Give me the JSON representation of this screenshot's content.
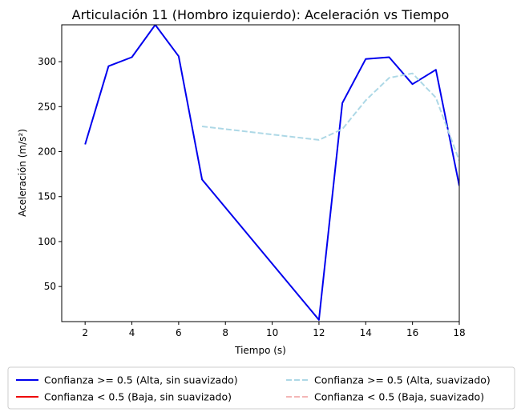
{
  "chart_data": {
    "type": "line",
    "title": "Articulación 11 (Hombro izquierdo): Aceleración vs Tiempo",
    "xlabel": "Tiempo (s)",
    "ylabel": "Aceleración (m/s²)",
    "xlim": [
      1,
      18
    ],
    "ylim": [
      11,
      341
    ],
    "xticks": [
      2,
      4,
      6,
      8,
      10,
      12,
      14,
      16,
      18
    ],
    "yticks": [
      50,
      100,
      150,
      200,
      250,
      300
    ],
    "grid": false,
    "legend_position": "bottom-center, outside plot",
    "series": [
      {
        "name": "Confianza >= 0.5 (Alta, sin suavizado)",
        "color": "#0000ee",
        "style": "solid",
        "x": [
          2,
          3,
          4,
          5,
          6,
          7,
          12,
          13,
          14,
          15,
          16,
          17,
          18
        ],
        "y": [
          208,
          295,
          305,
          341,
          306,
          169,
          13,
          254,
          303,
          305,
          275,
          291,
          162
        ]
      },
      {
        "name": "Confianza < 0.5 (Baja, sin suavizado)",
        "color": "#ee0000",
        "style": "solid",
        "x": [],
        "y": []
      },
      {
        "name": "Confianza >= 0.5 (Alta, suavizado)",
        "color": "#add8e6",
        "style": "dashed",
        "x": [
          7,
          12,
          13,
          14,
          15,
          16,
          17,
          18
        ],
        "y": [
          228,
          213,
          225,
          257,
          282,
          287,
          260,
          190
        ]
      },
      {
        "name": "Confianza < 0.5 (Baja, suavizado)",
        "color": "#f4b6b6",
        "style": "dashed",
        "x": [],
        "y": []
      }
    ]
  }
}
